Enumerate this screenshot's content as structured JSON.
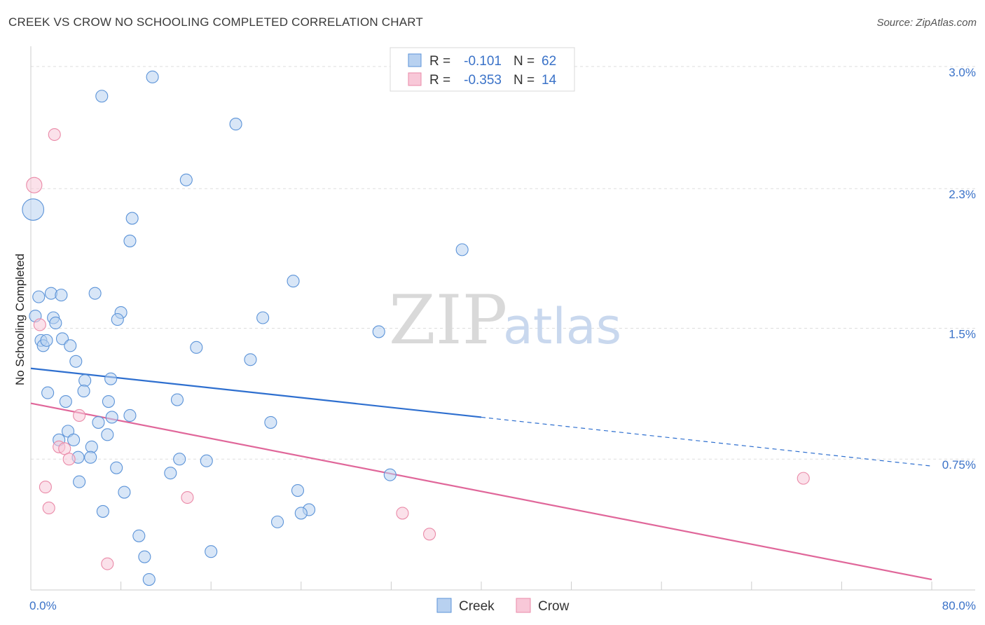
{
  "title": "CREEK VS CROW NO SCHOOLING COMPLETED CORRELATION CHART",
  "source": "Source: ZipAtlas.com",
  "watermark": {
    "zip": "ZIP",
    "atlas": "atlas"
  },
  "chart_data": {
    "type": "scatter",
    "xlabel": "",
    "ylabel": "No Schooling Completed",
    "xlim": [
      0,
      80
    ],
    "ylim": [
      0.0,
      3.1
    ],
    "x_tick_labels": [
      {
        "value": 0,
        "label": "0.0%"
      },
      {
        "value": 80,
        "label": "80.0%"
      }
    ],
    "y_tick_labels": [
      {
        "value": 0.75,
        "label": "0.75%"
      },
      {
        "value": 1.5,
        "label": "1.5%"
      },
      {
        "value": 2.3,
        "label": "2.3%"
      },
      {
        "value": 3.0,
        "label": "3.0%"
      }
    ],
    "legend_box": [
      {
        "series": "Creek",
        "r_label": "R =",
        "r_value": "-0.101",
        "n_label": "N =",
        "n_value": "62",
        "color": "#5b93d8"
      },
      {
        "series": "Crow",
        "r_label": "R =",
        "r_value": "-0.353",
        "n_label": "N =",
        "n_value": "14",
        "color": "#ea8aa8"
      }
    ],
    "series": [
      {
        "name": "Creek",
        "color": "#5b93d8",
        "fill": "#b8d1f0",
        "trend": {
          "x0": 0,
          "y0": 1.27,
          "x1": 40,
          "y1": 0.99,
          "dash_x1": 80,
          "dash_y1": 0.71,
          "color": "#2e6fcf"
        },
        "points": [
          [
            0.2,
            2.18,
            1.8
          ],
          [
            10.8,
            2.94,
            1
          ],
          [
            6.3,
            2.83,
            1
          ],
          [
            18.2,
            2.67,
            1
          ],
          [
            13.8,
            2.35,
            1
          ],
          [
            9.0,
            2.13,
            1
          ],
          [
            8.8,
            2.0,
            1
          ],
          [
            38.3,
            1.95,
            1
          ],
          [
            23.3,
            1.77,
            1
          ],
          [
            0.7,
            1.68,
            1
          ],
          [
            1.8,
            1.7,
            1
          ],
          [
            2.7,
            1.69,
            1
          ],
          [
            5.7,
            1.7,
            1
          ],
          [
            0.4,
            1.57,
            1
          ],
          [
            2.0,
            1.56,
            1
          ],
          [
            2.2,
            1.53,
            1
          ],
          [
            8.0,
            1.59,
            1
          ],
          [
            7.7,
            1.55,
            1
          ],
          [
            20.6,
            1.56,
            1
          ],
          [
            30.9,
            1.48,
            1
          ],
          [
            0.9,
            1.43,
            1
          ],
          [
            1.1,
            1.4,
            1
          ],
          [
            1.4,
            1.43,
            1
          ],
          [
            2.8,
            1.44,
            1
          ],
          [
            3.5,
            1.4,
            1
          ],
          [
            14.7,
            1.39,
            1
          ],
          [
            19.5,
            1.32,
            1
          ],
          [
            4.0,
            1.31,
            1
          ],
          [
            4.8,
            1.2,
            1
          ],
          [
            7.1,
            1.21,
            1
          ],
          [
            1.5,
            1.13,
            1
          ],
          [
            4.7,
            1.14,
            1
          ],
          [
            13.0,
            1.09,
            1
          ],
          [
            3.1,
            1.08,
            1
          ],
          [
            6.9,
            1.08,
            1
          ],
          [
            7.2,
            0.99,
            1
          ],
          [
            8.8,
            1.0,
            1
          ],
          [
            6.0,
            0.96,
            1
          ],
          [
            21.3,
            0.96,
            1
          ],
          [
            3.3,
            0.91,
            1
          ],
          [
            6.8,
            0.89,
            1
          ],
          [
            2.5,
            0.86,
            1
          ],
          [
            3.8,
            0.86,
            1
          ],
          [
            5.4,
            0.82,
            1
          ],
          [
            4.2,
            0.76,
            1
          ],
          [
            5.3,
            0.76,
            1
          ],
          [
            13.2,
            0.75,
            1
          ],
          [
            15.6,
            0.74,
            1
          ],
          [
            7.6,
            0.7,
            1
          ],
          [
            12.4,
            0.67,
            1
          ],
          [
            31.9,
            0.66,
            1
          ],
          [
            4.3,
            0.62,
            1
          ],
          [
            8.3,
            0.56,
            1
          ],
          [
            23.7,
            0.57,
            1
          ],
          [
            6.4,
            0.45,
            1
          ],
          [
            24.7,
            0.46,
            1
          ],
          [
            24.0,
            0.44,
            1
          ],
          [
            21.9,
            0.39,
            1
          ],
          [
            9.6,
            0.31,
            1
          ],
          [
            16.0,
            0.22,
            1
          ],
          [
            10.1,
            0.19,
            1
          ],
          [
            10.5,
            0.06,
            1
          ]
        ]
      },
      {
        "name": "Crow",
        "color": "#ea8aa8",
        "fill": "#f8c8d8",
        "trend": {
          "x0": 0,
          "y0": 1.07,
          "x1": 80,
          "y1": 0.06,
          "color": "#e0679a"
        },
        "points": [
          [
            0.3,
            2.32,
            1.3
          ],
          [
            2.1,
            2.61,
            1
          ],
          [
            0.8,
            1.52,
            1
          ],
          [
            4.3,
            1.0,
            1
          ],
          [
            2.5,
            0.82,
            1
          ],
          [
            3.0,
            0.81,
            1
          ],
          [
            3.4,
            0.75,
            1
          ],
          [
            1.3,
            0.59,
            1
          ],
          [
            13.9,
            0.53,
            1
          ],
          [
            1.6,
            0.47,
            1
          ],
          [
            33.0,
            0.44,
            1
          ],
          [
            35.4,
            0.32,
            1
          ],
          [
            6.8,
            0.15,
            1
          ],
          [
            68.6,
            0.64,
            1
          ]
        ]
      }
    ]
  }
}
